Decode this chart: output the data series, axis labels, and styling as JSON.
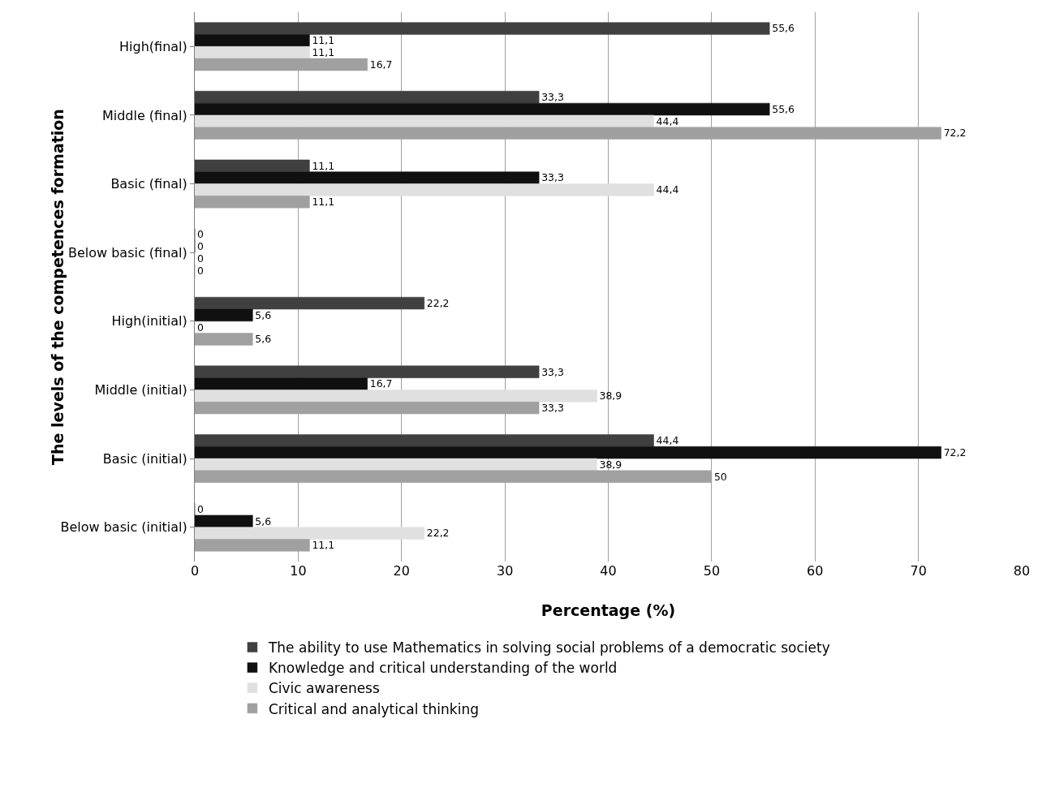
{
  "chart_data": {
    "type": "bar",
    "orientation": "horizontal",
    "categories": [
      "High(final)",
      "Middle (final)",
      "Basic (final)",
      "Below basic (final)",
      "High(initial)",
      "Middle (initial)",
      "Basic (initial)",
      "Below basic (initial)"
    ],
    "series": [
      {
        "name": "The ability to use Mathematics in solving social problems of a democratic society",
        "color": "#404040",
        "values": [
          55.6,
          33.3,
          11.1,
          0,
          22.2,
          33.3,
          44.4,
          0
        ],
        "value_labels": [
          "55,6",
          "33,3",
          "11,1",
          "0",
          "22,2",
          "33,3",
          "44,4",
          "0"
        ]
      },
      {
        "name": "Knowledge and critical understanding of the world",
        "color": "#101010",
        "values": [
          11.1,
          55.6,
          33.3,
          0,
          5.6,
          16.7,
          72.2,
          5.6
        ],
        "value_labels": [
          "11,1",
          "55,6",
          "33,3",
          "0",
          "5,6",
          "16,7",
          "72,2",
          "5,6"
        ]
      },
      {
        "name": "Civic awareness",
        "color": "#e0e0e0",
        "values": [
          11.1,
          44.4,
          44.4,
          0,
          0,
          38.9,
          38.9,
          22.2
        ],
        "value_labels": [
          "11,1",
          "44,4",
          "44,4",
          "0",
          "0",
          "38,9",
          "38,9",
          "22,2"
        ]
      },
      {
        "name": "Critical and analytical thinking",
        "color": "#a0a0a0",
        "values": [
          16.7,
          72.2,
          11.1,
          0,
          5.6,
          33.3,
          50,
          11.1
        ],
        "value_labels": [
          "16,7",
          "72,2",
          "11,1",
          "0",
          "5,6",
          "33,3",
          "50",
          "11,1"
        ]
      }
    ],
    "xlabel": "Percentage (%)",
    "ylabel": "The levels of the competences formation",
    "xlim": [
      0,
      80
    ],
    "xticks": [
      0,
      10,
      20,
      30,
      40,
      50,
      60,
      70,
      80
    ],
    "grid": "x",
    "legend": "bottom"
  }
}
